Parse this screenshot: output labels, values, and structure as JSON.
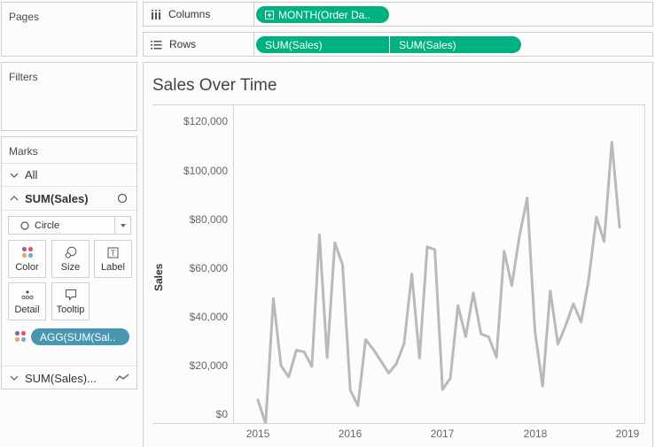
{
  "left_panel": {
    "pages": {
      "title": "Pages"
    },
    "filters": {
      "title": "Filters"
    },
    "marks": {
      "title": "Marks",
      "all_label": "All",
      "active_card": "SUM(Sales)",
      "mark_type": "Circle",
      "buttons": [
        {
          "label": "Color",
          "icon": "color-dots-icon"
        },
        {
          "label": "Size",
          "icon": "size-icon"
        },
        {
          "label": "Label",
          "icon": "label-icon"
        },
        {
          "label": "Detail",
          "icon": "detail-icon"
        },
        {
          "label": "Tooltip",
          "icon": "tooltip-icon"
        }
      ],
      "color_pill": "AGG(SUM(Sal..",
      "second_card": "SUM(Sales)..."
    }
  },
  "shelves": {
    "columns": {
      "label": "Columns",
      "pills": [
        "MONTH(Order Da.."
      ]
    },
    "rows": {
      "label": "Rows",
      "pills": [
        "SUM(Sales)",
        "SUM(Sales)"
      ]
    }
  },
  "colors": {
    "pill_green": "#00b180",
    "pill_blue": "#4996b2",
    "line": "#b9b9b9"
  },
  "chart_data": {
    "type": "line",
    "title": "Sales Over Time",
    "xlabel": "",
    "ylabel": "Sales",
    "ylim": [
      0,
      120000
    ],
    "y_ticks": [
      "$0",
      "$20,000",
      "$40,000",
      "$60,000",
      "$80,000",
      "$100,000",
      "$120,000"
    ],
    "x_ticks": [
      "2015",
      "2016",
      "2017",
      "2018",
      "2019"
    ],
    "grid": false,
    "series": [
      {
        "name": "SUM(Sales)",
        "x": [
          "2015-01",
          "2015-02",
          "2015-03",
          "2015-04",
          "2015-05",
          "2015-06",
          "2015-07",
          "2015-08",
          "2015-09",
          "2015-10",
          "2015-11",
          "2015-12",
          "2016-01",
          "2016-02",
          "2016-03",
          "2016-04",
          "2016-05",
          "2016-06",
          "2016-07",
          "2016-08",
          "2016-09",
          "2016-10",
          "2016-11",
          "2016-12",
          "2017-01",
          "2017-02",
          "2017-03",
          "2017-04",
          "2017-05",
          "2017-06",
          "2017-07",
          "2017-08",
          "2017-09",
          "2017-10",
          "2017-11",
          "2017-12",
          "2018-01",
          "2018-02",
          "2018-03",
          "2018-04",
          "2018-05",
          "2018-06",
          "2018-07",
          "2018-08",
          "2018-09",
          "2018-10",
          "2018-11",
          "2018-12"
        ],
        "values": [
          14200,
          4500,
          55700,
          28300,
          23600,
          34600,
          33900,
          27900,
          81800,
          31500,
          78600,
          69500,
          18200,
          11900,
          38900,
          34900,
          30100,
          25200,
          29000,
          37300,
          65800,
          31400,
          76900,
          75800,
          18500,
          23000,
          52900,
          40100,
          58000,
          41200,
          40000,
          31700,
          75200,
          61000,
          81400,
          96900,
          42600,
          19900,
          58800,
          37000,
          44700,
          53600,
          46100,
          63500,
          89100,
          79100,
          119800,
          84900
        ]
      }
    ]
  }
}
